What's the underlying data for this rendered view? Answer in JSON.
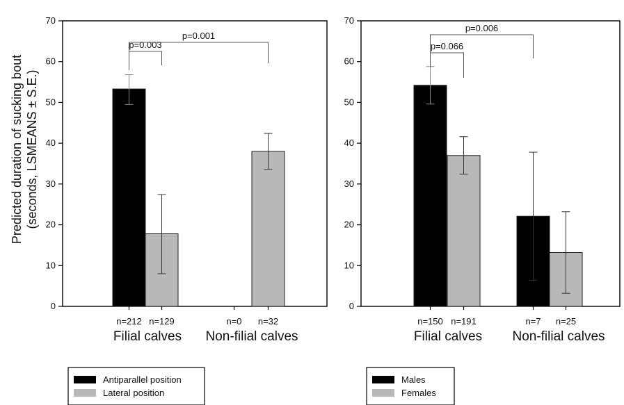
{
  "chart_data": [
    {
      "type": "bar",
      "ylabel_lines": [
        "Predicted duration of sucking bout",
        "(seconds, LSMEANS ± S.E.)"
      ],
      "ylim": [
        0,
        70
      ],
      "yticks": [
        0,
        10,
        20,
        30,
        40,
        50,
        60,
        70
      ],
      "categories": [
        "Filial calves",
        "Non-filial calves"
      ],
      "series": [
        {
          "name": "Antiparallel position",
          "color": "#000000",
          "values": [
            53.3,
            null
          ],
          "err_low": [
            49.5,
            null
          ],
          "err_high": [
            56.8,
            null
          ],
          "n": [
            "n=212",
            "n=0"
          ]
        },
        {
          "name": "Lateral position",
          "color": "#b8b8b8",
          "values": [
            17.8,
            38.0
          ],
          "err_low": [
            8.0,
            33.6
          ],
          "err_high": [
            27.4,
            42.4
          ],
          "n": [
            "n=129",
            "n=32"
          ]
        }
      ],
      "comparisons": [
        {
          "label": "p=0.003",
          "from": [
            0,
            0
          ],
          "to": [
            0,
            1
          ]
        },
        {
          "label": "p=0.001",
          "from": [
            0,
            0
          ],
          "to": [
            1,
            1
          ]
        }
      ]
    },
    {
      "type": "bar",
      "ylim": [
        0,
        70
      ],
      "yticks": [
        0,
        10,
        20,
        30,
        40,
        50,
        60,
        70
      ],
      "categories": [
        "Filial calves",
        "Non-filial calves"
      ],
      "series": [
        {
          "name": "Males",
          "color": "#000000",
          "values": [
            54.2,
            22.1
          ],
          "err_low": [
            49.6,
            6.4
          ],
          "err_high": [
            58.8,
            37.8
          ],
          "n": [
            "n=150",
            "n=7"
          ]
        },
        {
          "name": "Females",
          "color": "#b8b8b8",
          "values": [
            37.0,
            13.2
          ],
          "err_low": [
            32.4,
            3.2
          ],
          "err_high": [
            41.6,
            23.2
          ],
          "n": [
            "n=191",
            "n=25"
          ]
        }
      ],
      "comparisons": [
        {
          "label": "p=0.066",
          "from": [
            0,
            0
          ],
          "to": [
            0,
            1
          ]
        },
        {
          "label": "p=0.006",
          "from": [
            0,
            0
          ],
          "to": [
            1,
            0
          ]
        }
      ]
    }
  ]
}
